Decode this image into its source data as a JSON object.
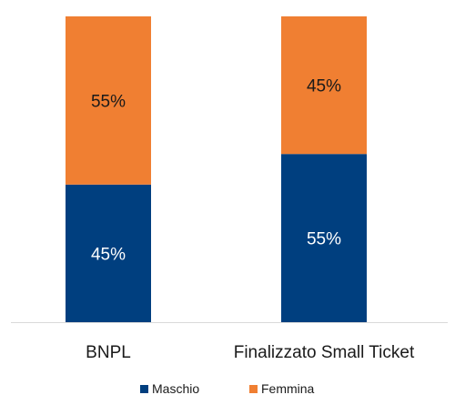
{
  "chart_data": {
    "type": "bar",
    "stacked": true,
    "percent": true,
    "categories": [
      "BNPL",
      "Finalizzato Small Ticket"
    ],
    "series": [
      {
        "name": "Maschio",
        "values": [
          45,
          55
        ],
        "color": "#003F7F",
        "labels": [
          "45%",
          "55%"
        ],
        "label_color": "#ffffff"
      },
      {
        "name": "Femmina",
        "values": [
          55,
          45
        ],
        "color": "#F07F32",
        "labels": [
          "55%",
          "45%"
        ],
        "label_color": "#1a1a1a"
      }
    ],
    "ylim": [
      0,
      100
    ],
    "grid": false,
    "legend_position": "bottom"
  }
}
